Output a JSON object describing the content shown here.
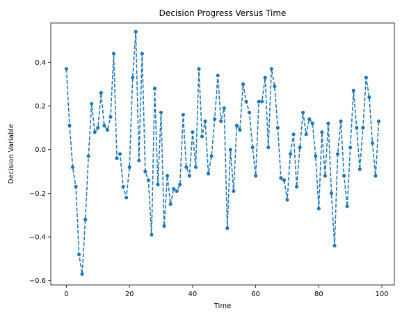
{
  "chart_data": {
    "type": "line",
    "title": "Decision Progress Versus Time",
    "xlabel": "Time",
    "ylabel": "Decision Variable",
    "xlim": [
      -4.95,
      103.95
    ],
    "ylim": [
      -0.62,
      0.58
    ],
    "xticks": [
      0,
      20,
      40,
      60,
      80,
      100
    ],
    "xtick_labels": [
      "0",
      "20",
      "40",
      "60",
      "80",
      "100"
    ],
    "yticks": [
      -0.6,
      -0.4,
      -0.2,
      0.0,
      0.2,
      0.4
    ],
    "ytick_labels": [
      "−0.6",
      "−0.4",
      "−0.2",
      "0.0",
      "0.2",
      "0.4"
    ],
    "grid": false,
    "line_style": "dashed",
    "marker": "circle",
    "series": [
      {
        "color": "#1f77b4",
        "x": [
          0,
          1,
          2,
          3,
          4,
          5,
          6,
          7,
          8,
          9,
          10,
          11,
          12,
          13,
          14,
          15,
          16,
          17,
          18,
          19,
          20,
          21,
          22,
          23,
          24,
          25,
          26,
          27,
          28,
          29,
          30,
          31,
          32,
          33,
          34,
          35,
          36,
          37,
          38,
          39,
          40,
          41,
          42,
          43,
          44,
          45,
          46,
          47,
          48,
          49,
          50,
          51,
          52,
          53,
          54,
          55,
          56,
          57,
          58,
          59,
          60,
          61,
          62,
          63,
          64,
          65,
          66,
          67,
          68,
          69,
          70,
          71,
          72,
          73,
          74,
          75,
          76,
          77,
          78,
          79,
          80,
          81,
          82,
          83,
          84,
          85,
          86,
          87,
          88,
          89,
          90,
          91,
          92,
          93,
          94,
          95,
          96,
          97,
          98,
          99
        ],
        "y": [
          0.37,
          0.11,
          -0.08,
          -0.17,
          -0.48,
          -0.57,
          -0.32,
          -0.03,
          0.21,
          0.08,
          0.1,
          0.26,
          0.11,
          0.09,
          0.15,
          0.44,
          -0.04,
          -0.02,
          -0.17,
          -0.22,
          -0.08,
          0.33,
          0.54,
          -0.05,
          0.44,
          -0.1,
          -0.14,
          -0.39,
          0.28,
          -0.16,
          0.17,
          -0.35,
          -0.12,
          -0.25,
          -0.18,
          -0.19,
          -0.16,
          0.16,
          -0.08,
          -0.12,
          0.08,
          -0.08,
          0.37,
          0.06,
          0.13,
          -0.11,
          -0.03,
          0.14,
          0.34,
          0.13,
          0.19,
          -0.36,
          0.0,
          -0.19,
          0.11,
          0.09,
          0.3,
          0.22,
          0.17,
          0.01,
          -0.12,
          0.22,
          0.22,
          0.33,
          0.01,
          0.37,
          0.29,
          0.1,
          -0.13,
          -0.14,
          -0.23,
          -0.02,
          0.07,
          -0.17,
          0.01,
          0.17,
          0.07,
          0.14,
          0.12,
          -0.03,
          -0.27,
          0.08,
          -0.12,
          0.12,
          -0.2,
          -0.44,
          -0.02,
          0.13,
          -0.12,
          -0.26,
          0.01,
          0.27,
          0.1,
          -0.09,
          0.1,
          0.33,
          0.24,
          0.03,
          -0.12,
          0.13
        ]
      }
    ]
  }
}
